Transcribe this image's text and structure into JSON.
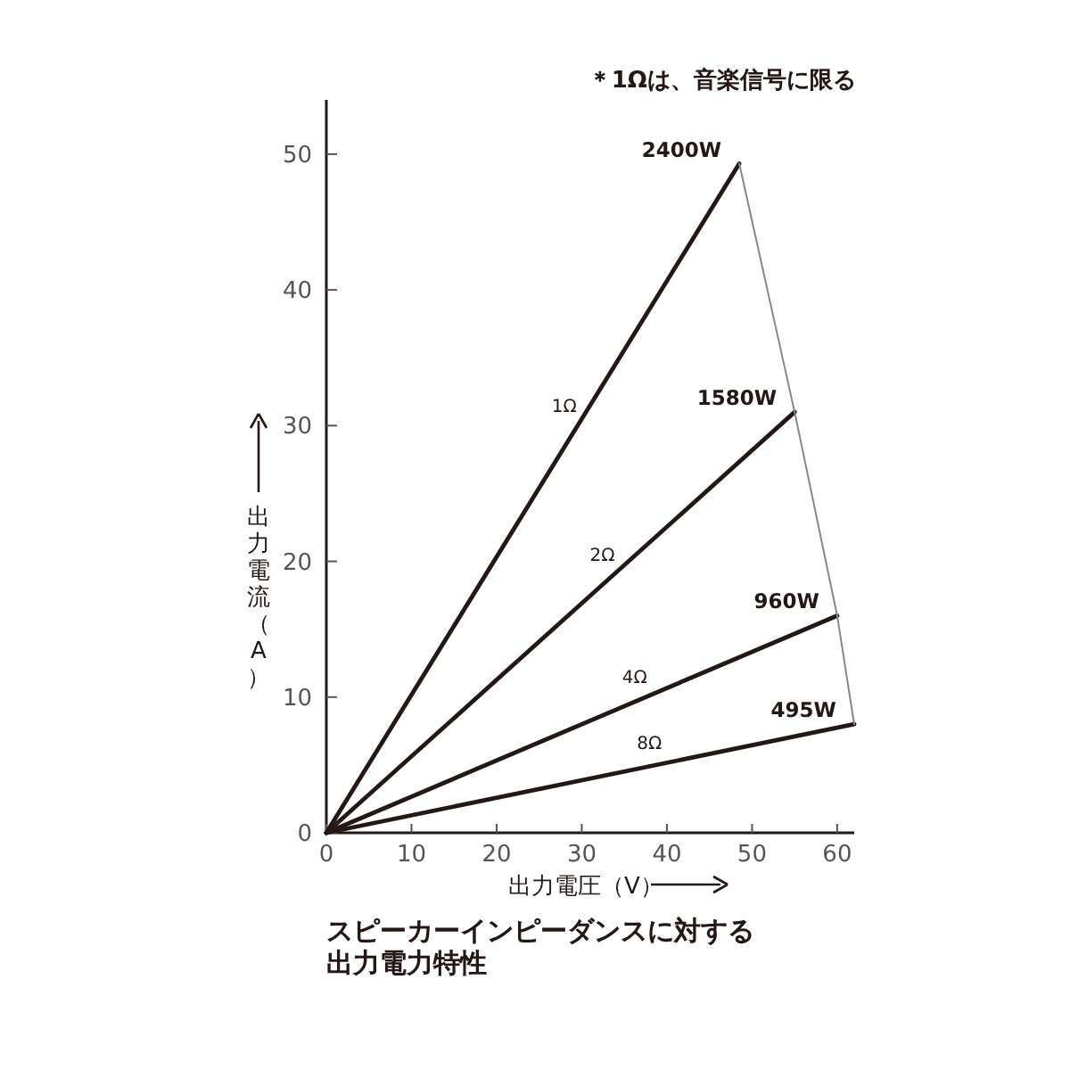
{
  "chart_data": {
    "type": "line",
    "title": "スピーカーインピーダンスに対する出力電力特性",
    "xlabel": "出力電圧（V）",
    "ylabel": "出力電流（A）",
    "series": [
      {
        "name": "1Ω",
        "color": "#231815",
        "x": [
          0,
          48.5
        ],
        "values": [
          0,
          49.3
        ]
      },
      {
        "name": "2Ω",
        "color": "#231815",
        "x": [
          0,
          55
        ],
        "values": [
          0,
          31
        ]
      },
      {
        "name": "4Ω",
        "color": "#231815",
        "x": [
          0,
          60
        ],
        "values": [
          0,
          16
        ]
      },
      {
        "name": "8Ω",
        "color": "#231815",
        "x": [
          0,
          62
        ],
        "values": [
          0,
          8
        ]
      },
      {
        "color": "#888888",
        "x": [
          48.5,
          55,
          60,
          62
        ],
        "values": [
          49.3,
          31,
          16,
          8
        ]
      }
    ],
    "annotations": [
      "＊1Ωは、音楽信号に限る",
      {
        "text": "2400W",
        "x": 48.5,
        "y": 49.3
      },
      {
        "text": "1580W",
        "x": 55,
        "y": 31
      },
      {
        "text": "960W",
        "x": 60,
        "y": 16
      },
      {
        "text": "495W",
        "x": 62,
        "y": 8
      }
    ],
    "xlim": [
      0,
      62
    ],
    "ylim": [
      0,
      54
    ],
    "xticks": [
      0,
      10,
      20,
      30,
      40,
      50,
      60
    ],
    "yticks": [
      0,
      10,
      20,
      30,
      40,
      50
    ]
  }
}
